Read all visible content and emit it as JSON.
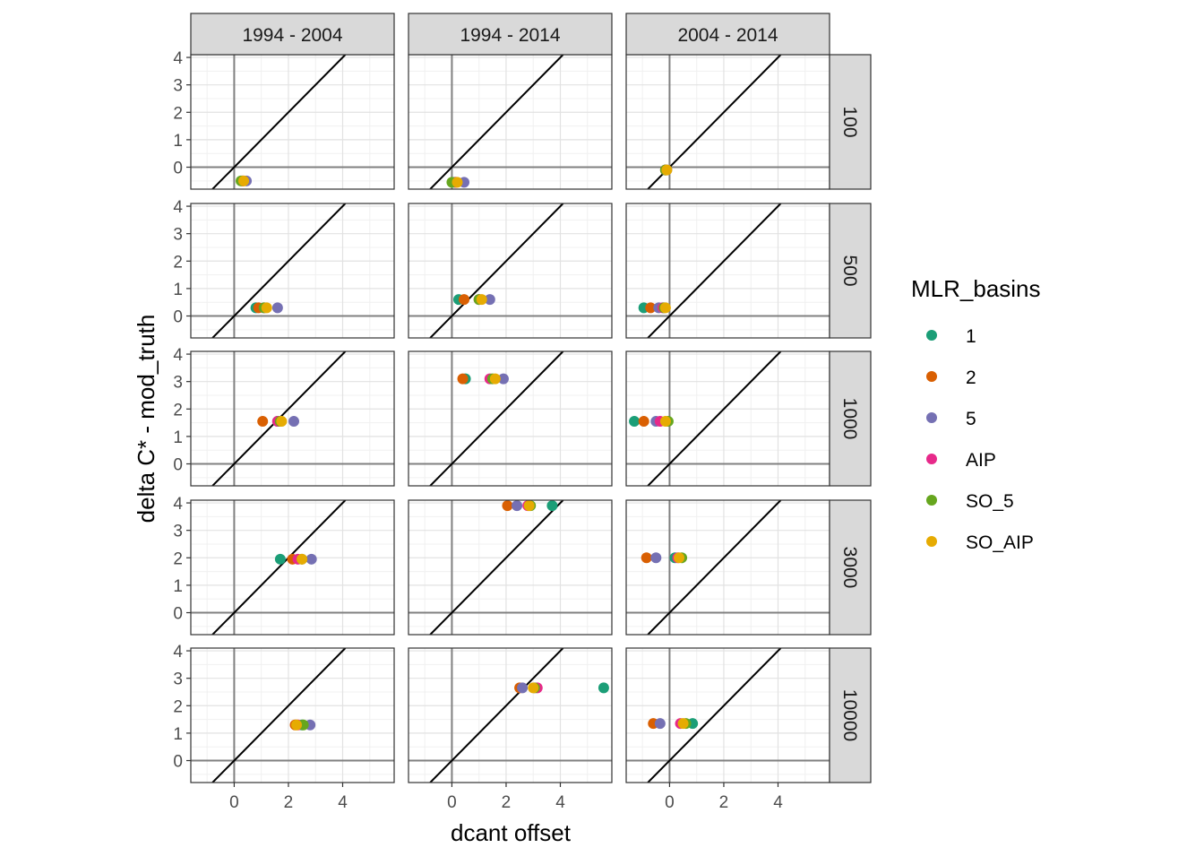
{
  "chart_data": {
    "type": "scatter",
    "xlabel": "dcant offset",
    "ylabel": "delta C* - mod_truth",
    "facet_cols": [
      "1994 - 2004",
      "1994 - 2014",
      "2004 - 2014"
    ],
    "facet_rows": [
      "100",
      "500",
      "1000",
      "3000",
      "10000"
    ],
    "xlim": [
      -1.6,
      5.9
    ],
    "ylim": [
      -0.8,
      4.1
    ],
    "x_ticks": [
      "0",
      "2",
      "4"
    ],
    "y_ticks": [
      "0",
      "1",
      "2",
      "3",
      "4"
    ],
    "reference_lines": [
      "x = 0",
      "y = 0",
      "y = x"
    ],
    "grid": true,
    "legend": {
      "title": "MLR_basins",
      "placement": "right",
      "entries": [
        {
          "label": "1",
          "color": "#1b9e77"
        },
        {
          "label": "2",
          "color": "#d95f02"
        },
        {
          "label": "5",
          "color": "#7570b3"
        },
        {
          "label": "AIP",
          "color": "#e7298a"
        },
        {
          "label": "SO_5",
          "color": "#66a61e"
        },
        {
          "label": "SO_AIP",
          "color": "#e6ab02"
        }
      ]
    },
    "panels": [
      {
        "col": "1994 - 2004",
        "row": "100",
        "y": -0.5,
        "points": {
          "1": 0.3,
          "2": 0.35,
          "5": 0.45,
          "AIP": 0.3,
          "SO_5": 0.25,
          "SO_AIP": 0.35
        }
      },
      {
        "col": "1994 - 2014",
        "row": "100",
        "y": -0.55,
        "points": {
          "1": 0.1,
          "2": 0.15,
          "5": 0.45,
          "AIP": 0.15,
          "SO_5": 0.0,
          "SO_AIP": 0.2
        }
      },
      {
        "col": "2004 - 2014",
        "row": "100",
        "y": -0.1,
        "points": {
          "1": -0.15,
          "2": -0.15,
          "5": -0.1,
          "AIP": -0.15,
          "SO_5": -0.15,
          "SO_AIP": -0.1
        }
      },
      {
        "col": "1994 - 2004",
        "row": "500",
        "y": 0.3,
        "points": {
          "1": 0.8,
          "2": 0.9,
          "5": 1.6,
          "AIP": 1.1,
          "SO_5": 1.1,
          "SO_AIP": 1.2
        }
      },
      {
        "col": "1994 - 2014",
        "row": "500",
        "y": 0.6,
        "points": {
          "1": 0.25,
          "2": 0.45,
          "5": 1.4,
          "AIP": 1.0,
          "SO_5": 1.0,
          "SO_AIP": 1.1
        }
      },
      {
        "col": "2004 - 2014",
        "row": "500",
        "y": 0.3,
        "points": {
          "1": -0.95,
          "2": -0.7,
          "5": -0.4,
          "AIP": -0.25,
          "SO_5": -0.2,
          "SO_AIP": -0.15
        }
      },
      {
        "col": "1994 - 2004",
        "row": "1000",
        "y": 1.55,
        "points": {
          "1": 1.6,
          "2": 1.05,
          "5": 2.2,
          "AIP": 1.6,
          "SO_5": 1.7,
          "SO_AIP": 1.75
        }
      },
      {
        "col": "1994 - 2014",
        "row": "1000",
        "y": 3.1,
        "points": {
          "1": 0.5,
          "2": 0.4,
          "5": 1.9,
          "AIP": 1.4,
          "SO_5": 1.5,
          "SO_AIP": 1.6
        }
      },
      {
        "col": "2004 - 2014",
        "row": "1000",
        "y": 1.55,
        "points": {
          "1": -1.3,
          "2": -0.95,
          "5": -0.5,
          "AIP": -0.35,
          "SO_5": -0.05,
          "SO_AIP": -0.15
        }
      },
      {
        "col": "1994 - 2004",
        "row": "3000",
        "y": 1.95,
        "points": {
          "1": 1.7,
          "2": 2.15,
          "5": 2.85,
          "AIP": 2.35,
          "SO_5": 2.5,
          "SO_AIP": 2.5
        }
      },
      {
        "col": "1994 - 2014",
        "row": "3000",
        "y": 3.9,
        "points": {
          "1": 3.7,
          "2": 2.05,
          "5": 2.4,
          "AIP": 2.8,
          "SO_5": 2.9,
          "SO_AIP": 2.85
        }
      },
      {
        "col": "2004 - 2014",
        "row": "3000",
        "y": 2.0,
        "points": {
          "1": 0.2,
          "2": -0.85,
          "5": -0.5,
          "AIP": 0.3,
          "SO_5": 0.45,
          "SO_AIP": 0.35
        }
      },
      {
        "col": "1994 - 2004",
        "row": "10000",
        "y": 1.3,
        "points": {
          "1": 2.5,
          "2": 2.25,
          "5": 2.8,
          "AIP": 2.35,
          "SO_5": 2.55,
          "SO_AIP": 2.3
        }
      },
      {
        "col": "1994 - 2014",
        "row": "10000",
        "y": 2.65,
        "points": {
          "1": 5.6,
          "2": 2.5,
          "5": 2.6,
          "AIP": 3.15,
          "SO_5": 3.05,
          "SO_AIP": 3.0
        }
      },
      {
        "col": "2004 - 2014",
        "row": "10000",
        "y": 1.35,
        "points": {
          "1": 0.85,
          "2": -0.6,
          "5": -0.35,
          "AIP": 0.4,
          "SO_5": 0.6,
          "SO_AIP": 0.5
        }
      }
    ]
  }
}
